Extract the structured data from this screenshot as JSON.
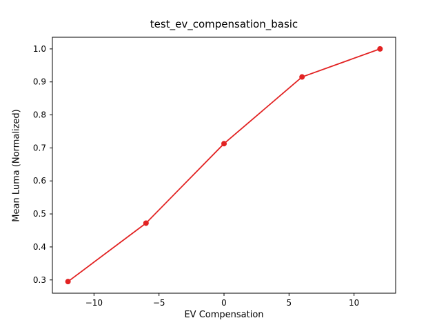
{
  "chart_data": {
    "type": "line",
    "title": "test_ev_compensation_basic",
    "xlabel": "EV Compensation",
    "ylabel": "Mean Luma (Normalized)",
    "x": [
      -12,
      -6,
      0,
      6,
      12
    ],
    "y": [
      0.295,
      0.472,
      0.713,
      0.915,
      1.0
    ],
    "xlim": [
      -13.2,
      13.2
    ],
    "ylim": [
      0.2598,
      1.0353
    ],
    "xticks": [
      -10,
      -5,
      0,
      5,
      10
    ],
    "xtick_labels": [
      "−10",
      "−5",
      "0",
      "5",
      "10"
    ],
    "yticks": [
      0.3,
      0.4,
      0.5,
      0.6,
      0.7,
      0.8,
      0.9,
      1.0
    ],
    "ytick_labels": [
      "0.3",
      "0.4",
      "0.5",
      "0.6",
      "0.7",
      "0.8",
      "0.9",
      "1.0"
    ],
    "line_color": "#e22222",
    "marker": "o",
    "marker_color": "#e22222",
    "grid": false,
    "legend_position": "none",
    "axes_color": "#000000",
    "background_color": "#ffffff"
  }
}
